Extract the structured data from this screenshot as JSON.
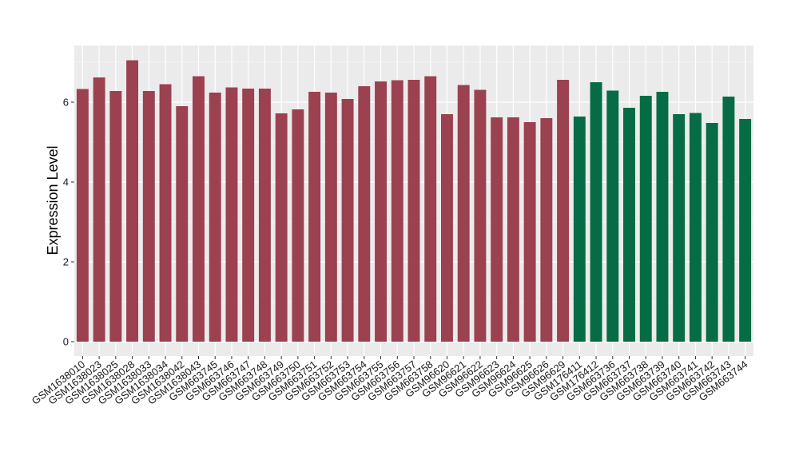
{
  "chart_data": {
    "type": "bar",
    "title": "",
    "xlabel": "",
    "ylabel": "Expression Level",
    "ylim": [
      0,
      7.2
    ],
    "yticks": [
      0,
      2,
      4,
      6
    ],
    "ytick_labels": [
      "0",
      "2",
      "4",
      "6"
    ],
    "grid": true,
    "categories": [
      "GSM1638010",
      "GSM1638023",
      "GSM1638025",
      "GSM1638028",
      "GSM1638033",
      "GSM1638034",
      "GSM1638042",
      "GSM1638043",
      "GSM663745",
      "GSM663746",
      "GSM663747",
      "GSM663748",
      "GSM663749",
      "GSM663750",
      "GSM663751",
      "GSM663752",
      "GSM663753",
      "GSM663754",
      "GSM663755",
      "GSM663756",
      "GSM663757",
      "GSM663758",
      "GSM96620",
      "GSM96621",
      "GSM96622",
      "GSM96623",
      "GSM96624",
      "GSM96625",
      "GSM96626",
      "GSM96629",
      "GSM176411",
      "GSM176412",
      "GSM663736",
      "GSM663737",
      "GSM663738",
      "GSM663739",
      "GSM663740",
      "GSM663741",
      "GSM663742",
      "GSM663743",
      "GSM663744"
    ],
    "values": [
      6.33,
      6.62,
      6.28,
      7.05,
      6.28,
      6.45,
      5.9,
      6.65,
      6.24,
      6.37,
      6.34,
      6.34,
      5.72,
      5.82,
      6.26,
      6.24,
      6.08,
      6.4,
      6.52,
      6.55,
      6.56,
      6.65,
      5.7,
      6.43,
      6.31,
      5.62,
      5.62,
      5.5,
      5.6,
      6.56,
      5.64,
      6.5,
      6.29,
      5.86,
      6.16,
      6.26,
      5.7,
      5.73,
      5.48,
      6.14,
      5.58
    ],
    "groups": [
      0,
      0,
      0,
      0,
      0,
      0,
      0,
      0,
      0,
      0,
      0,
      0,
      0,
      0,
      0,
      0,
      0,
      0,
      0,
      0,
      0,
      0,
      0,
      0,
      0,
      0,
      0,
      0,
      0,
      0,
      1,
      1,
      1,
      1,
      1,
      1,
      1,
      1,
      1,
      1,
      1
    ],
    "colors": {
      "group_0": "#9b4150",
      "group_1": "#056c45",
      "panel_bg": "#ebebeb",
      "grid": "#ffffff"
    }
  }
}
